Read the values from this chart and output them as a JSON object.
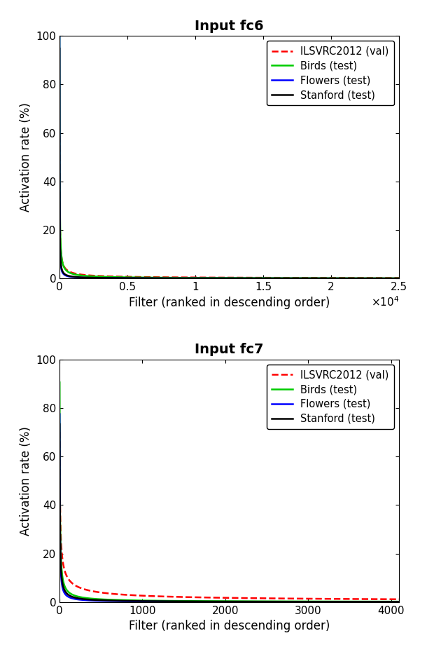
{
  "fc6": {
    "title": "Input fc6",
    "xlabel": "Filter (ranked in descending order)",
    "ylabel": "Activation rate (%)",
    "xlim": [
      0,
      25000
    ],
    "ylim": [
      0,
      100
    ],
    "xticks": [
      0,
      5000,
      10000,
      15000,
      20000,
      25000
    ],
    "xtick_labels": [
      "0",
      "0.5",
      "1",
      "1.5",
      "2",
      "2.5"
    ],
    "curves": {
      "ilsvrc": {
        "color": "#ff0000",
        "linestyle": "--",
        "label": "ILSVRC2012 (val)",
        "a": 320,
        "b": 8,
        "p": 0.72
      },
      "birds": {
        "color": "#00cc00",
        "linestyle": "-",
        "label": "Birds (test)",
        "a": 600,
        "b": 5,
        "p": 0.82
      },
      "flowers": {
        "color": "#0000ff",
        "linestyle": "-",
        "label": "Flowers (test)",
        "a": 400,
        "b": 3,
        "p": 0.92
      },
      "stanford": {
        "color": "#000000",
        "linestyle": "-",
        "label": "Stanford (test)",
        "a": 450,
        "b": 4,
        "p": 0.9
      }
    }
  },
  "fc7": {
    "title": "Input fc7",
    "xlabel": "Filter (ranked in descending order)",
    "ylabel": "Activation rate (%)",
    "xlim": [
      0,
      4096
    ],
    "ylim": [
      0,
      100
    ],
    "xticks": [
      0,
      1000,
      2000,
      3000,
      4000
    ],
    "xtick_labels": [
      "0",
      "1000",
      "2000",
      "3000",
      "4000"
    ],
    "curves": {
      "ilsvrc": {
        "color": "#ff0000",
        "linestyle": "--",
        "label": "ILSVRC2012 (val)",
        "a": 145,
        "b": 2.5,
        "p": 0.58
      },
      "birds": {
        "color": "#00cc00",
        "linestyle": "-",
        "label": "Birds (test)",
        "a": 220,
        "b": 2,
        "p": 0.82
      },
      "flowers": {
        "color": "#0000ff",
        "linestyle": "-",
        "label": "Flowers (test)",
        "a": 195,
        "b": 1.5,
        "p": 0.93
      },
      "stanford": {
        "color": "#000000",
        "linestyle": "-",
        "label": "Stanford (test)",
        "a": 200,
        "b": 2,
        "p": 0.88
      }
    }
  }
}
